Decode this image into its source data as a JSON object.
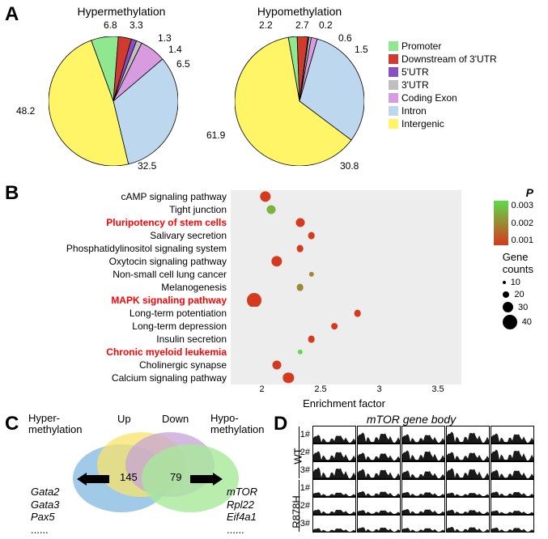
{
  "panelA": {
    "label": "A",
    "hyper_title": "Hypermethylation",
    "hypo_title": "Hypomethylation",
    "legend": [
      {
        "color": "#8fe88f",
        "label": "Promoter"
      },
      {
        "color": "#d13a2f",
        "label": "Downstream of 3'UTR"
      },
      {
        "color": "#8a4fc4",
        "label": "5'UTR"
      },
      {
        "color": "#bfbfbf",
        "label": "3'UTR"
      },
      {
        "color": "#d99be0",
        "label": "Coding Exon"
      },
      {
        "color": "#bdd7ee",
        "label": "Intron"
      },
      {
        "color": "#fff566",
        "label": "Intergenic"
      }
    ],
    "hyper": [
      {
        "value": 6.8,
        "color": "#8fe88f"
      },
      {
        "value": 3.3,
        "color": "#d13a2f"
      },
      {
        "value": 1.3,
        "color": "#8a4fc4"
      },
      {
        "value": 1.4,
        "color": "#bfbfbf"
      },
      {
        "value": 6.5,
        "color": "#d99be0"
      },
      {
        "value": 32.5,
        "color": "#bdd7ee"
      },
      {
        "value": 48.2,
        "color": "#fff566"
      }
    ],
    "hypo": [
      {
        "value": 2.2,
        "color": "#8fe88f"
      },
      {
        "value": 2.7,
        "color": "#d13a2f"
      },
      {
        "value": 0.2,
        "color": "#8a4fc4"
      },
      {
        "value": 0.6,
        "color": "#bfbfbf"
      },
      {
        "value": 1.5,
        "color": "#d99be0"
      },
      {
        "value": 30.8,
        "color": "#bdd7ee"
      },
      {
        "value": 61.9,
        "color": "#fff566"
      }
    ]
  },
  "panelB": {
    "label": "B",
    "xlabel": "Enrichment factor",
    "xticks": [
      "2",
      "2.5",
      "3",
      "3.5"
    ],
    "p_label": "P",
    "p_ticks": [
      "0.003",
      "0.002",
      "0.001"
    ],
    "size_label": "Gene counts",
    "size_ticks": [
      "10",
      "20",
      "30",
      "40"
    ],
    "rows": [
      {
        "label": "cAMP signaling pathway",
        "highlight": false,
        "x": 2.0,
        "p": 0.001,
        "count": 30
      },
      {
        "label": "Tight junction",
        "highlight": false,
        "x": 2.05,
        "p": 0.0025,
        "count": 25
      },
      {
        "label": "Pluripotency of stem cells",
        "highlight": true,
        "x": 2.3,
        "p": 0.001,
        "count": 25
      },
      {
        "label": "Salivary secretion",
        "highlight": false,
        "x": 2.4,
        "p": 0.001,
        "count": 20
      },
      {
        "label": "Phosphatidylinositol signaling system",
        "highlight": false,
        "x": 2.3,
        "p": 0.001,
        "count": 20
      },
      {
        "label": "Oxytocin signaling pathway",
        "highlight": false,
        "x": 2.1,
        "p": 0.001,
        "count": 30
      },
      {
        "label": "Non-small cell lung cancer",
        "highlight": false,
        "x": 2.4,
        "p": 0.002,
        "count": 15
      },
      {
        "label": "Melanogenesis",
        "highlight": false,
        "x": 2.3,
        "p": 0.002,
        "count": 20
      },
      {
        "label": "MAPK signaling pathway",
        "highlight": true,
        "x": 1.9,
        "p": 0.001,
        "count": 40
      },
      {
        "label": "Long-term potentiation",
        "highlight": false,
        "x": 2.8,
        "p": 0.001,
        "count": 20
      },
      {
        "label": "Long-term depression",
        "highlight": false,
        "x": 2.6,
        "p": 0.001,
        "count": 18
      },
      {
        "label": "Insulin secretion",
        "highlight": false,
        "x": 2.4,
        "p": 0.001,
        "count": 20
      },
      {
        "label": "Chronic myeloid leukemia",
        "highlight": true,
        "x": 2.3,
        "p": 0.003,
        "count": 15
      },
      {
        "label": "Cholinergic synapse",
        "highlight": false,
        "x": 2.1,
        "p": 0.001,
        "count": 25
      },
      {
        "label": "Calcium signaling pathway",
        "highlight": false,
        "x": 2.2,
        "p": 0.001,
        "count": 30
      }
    ]
  },
  "panelC": {
    "label": "C",
    "labels": {
      "hyper": "Hyper-\nmethylation",
      "up": "Up",
      "down": "Down",
      "hypo": "Hypo-\nmethylation"
    },
    "left_count": "145",
    "right_count": "79",
    "left_genes": "Gata2\nGata3\nPax5\n......",
    "right_genes": "mTOR\nRpl22\nEif4a1\n......",
    "colors": {
      "hyper": "#8abde2",
      "up": "#f7e36b",
      "down": "#c5a3d6",
      "hypo": "#a8e89a"
    }
  },
  "panelD": {
    "label": "D",
    "title": "mTOR gene body",
    "row_labels": [
      "1#",
      "2#",
      "3#",
      "1#",
      "2#",
      "3#"
    ],
    "group_labels": [
      "WT",
      "R878H"
    ]
  }
}
